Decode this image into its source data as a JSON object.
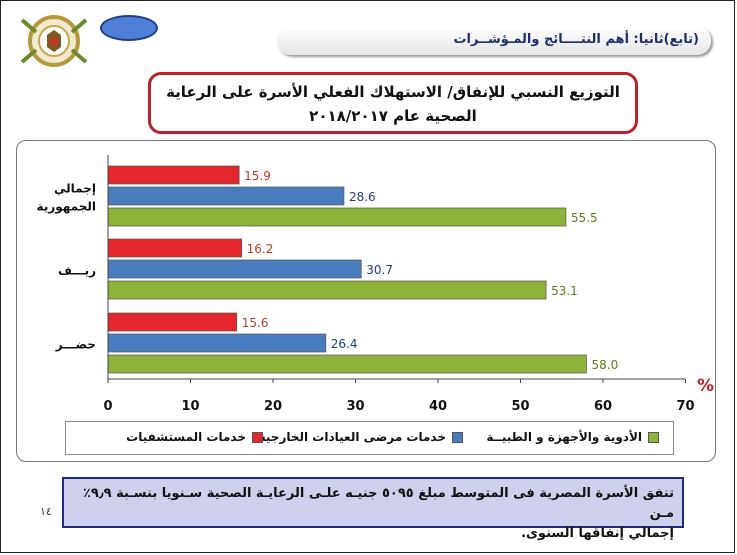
{
  "header": {
    "breadcrumb": "(تابع)ثانيا: أهم النتــــائج والمـؤشــرات"
  },
  "title": {
    "line1": "التوزيع النسبي للإنفاق/ الاستهلاك الفعلي الأسرة على الرعاية",
    "line2": "الصحية عام ٢٠١٨/٢٠١٧"
  },
  "chart_data": {
    "type": "bar",
    "orientation": "horizontal",
    "categories": [
      "إجمالي الجمهورية",
      "ريـــف",
      "حضـــر"
    ],
    "series": [
      {
        "name": "خدمات المستشفيات",
        "color": "#e3272d",
        "values": [
          15.9,
          16.2,
          15.6
        ]
      },
      {
        "name": "خدمات مرضى العيادات الخارجية",
        "color": "#4a7cc0",
        "values": [
          28.6,
          30.7,
          26.4
        ]
      },
      {
        "name": "الأدوية والأجهزة و الطبيــة",
        "color": "#8db33a",
        "values": [
          55.5,
          53.1,
          58.0
        ]
      }
    ],
    "data_labels": [
      [
        "15.9",
        "16.2",
        "15.6"
      ],
      [
        "28.6",
        "30.7",
        "26.4"
      ],
      [
        "55.5",
        "53.1",
        "58.0"
      ]
    ],
    "category_labels": [
      [
        "إجمالي",
        "الجمهورية"
      ],
      [
        "ريـــف"
      ],
      [
        "حضـــر"
      ]
    ],
    "x_ticks": [
      "0",
      "10",
      "20",
      "30",
      "40",
      "50",
      "60",
      "70"
    ],
    "xlim": [
      0,
      70
    ],
    "unit_label": "%",
    "legend_position": "bottom",
    "grid": false
  },
  "footer": {
    "line1": "تنفق الأسرة المصرية فى المتوسط مبلغ   ٥٠٩٥ جنيـه علـى الرعايـة الصحية سـنويا بنسـبة ٩٫٩٪ مـن",
    "line2": "إجمالي إنفاقها السنوى.",
    "page_number": "١٤"
  }
}
